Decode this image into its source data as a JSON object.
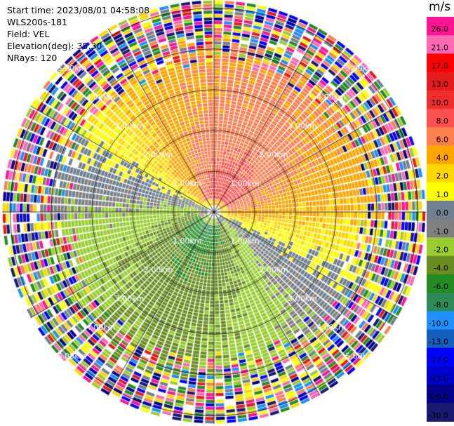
{
  "header": {
    "start_time": "Start time: 2023/08/01 04:58:08",
    "instrument": "WLS200s-181",
    "field": "Field: VEL",
    "elevation": "Elevation(deg): 35.30",
    "nrays": "NRays: 120"
  },
  "colorbar": {
    "unit": "m/s",
    "ticks": [
      "26.0",
      "21.0",
      "17.0",
      "13.0",
      "10.0",
      "8.0",
      "6.0",
      "4.0",
      "2.0",
      "1.0",
      "0.0",
      "-1.0",
      "-2.0",
      "-4.0",
      "-6.0",
      "-8.0",
      "-10.0",
      "-13.0",
      "-17.0",
      "-21.0",
      "-26.0",
      "-30.0"
    ],
    "colors": [
      "#ff1493",
      "#ff69b4",
      "#ff0000",
      "#e41a1c",
      "#f02d2d",
      "#ff5050",
      "#ff7f50",
      "#ffa500",
      "#ffd700",
      "#ffff00",
      "#708090",
      "#808080",
      "#9acd32",
      "#6b8e23",
      "#228b22",
      "#2e8b57",
      "#1e90ff",
      "#1560bd",
      "#0000ff",
      "#0000cd",
      "#00008b",
      "#191970"
    ]
  },
  "chart_data": {
    "type": "ppi",
    "field": "VEL",
    "units": "m/s",
    "nrays": 120,
    "range_rings_km": [
      1.0,
      2.0,
      3.0,
      4.0,
      5.0
    ],
    "range_labels": [
      "1.00km",
      "2.00km",
      "3.00km",
      "4.00km",
      "5.00km"
    ],
    "spokes_deg": [
      0,
      30,
      60,
      90,
      120,
      150,
      180,
      210,
      240,
      270,
      300,
      330
    ],
    "pattern": "dipole: positive (away) velocities toward north, negative toward south; noisy speckle beyond ~3.5 km",
    "velocity_range": [
      -30,
      26
    ]
  }
}
